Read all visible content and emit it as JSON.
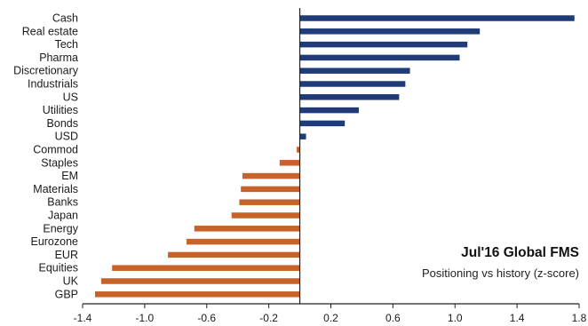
{
  "chart_data": {
    "type": "bar",
    "orientation": "horizontal",
    "title": "Jul'16 Global FMS",
    "subtitle": "Positioning vs history (z-score)",
    "categories": [
      "Cash",
      "Real estate",
      "Tech",
      "Pharma",
      "Discretionary",
      "Industrials",
      "US",
      "Utilities",
      "Bonds",
      "USD",
      "Commod",
      "Staples",
      "EM",
      "Materials",
      "Banks",
      "Japan",
      "Energy",
      "Eurozone",
      "EUR",
      "Equities",
      "UK",
      "GBP"
    ],
    "values": [
      1.77,
      1.16,
      1.08,
      1.03,
      0.71,
      0.68,
      0.64,
      0.38,
      0.29,
      0.04,
      -0.02,
      -0.13,
      -0.37,
      -0.38,
      -0.39,
      -0.44,
      -0.68,
      -0.73,
      -0.85,
      -1.21,
      -1.28,
      -1.32
    ],
    "xlim": [
      -1.4,
      1.8
    ],
    "xticks": [
      "-1.4",
      "-1.0",
      "-0.6",
      "-0.2",
      "0.2",
      "0.6",
      "1.0",
      "1.4",
      "1.8"
    ],
    "xtick_values": [
      -1.4,
      -1.0,
      -0.6,
      -0.2,
      0.2,
      0.6,
      1.0,
      1.4,
      1.8
    ],
    "xlabel": "",
    "ylabel": "",
    "grid": false,
    "legend": "none",
    "colors": {
      "positive": "#1f3c78",
      "negative": "#c6622a",
      "axis": "#222222"
    }
  }
}
